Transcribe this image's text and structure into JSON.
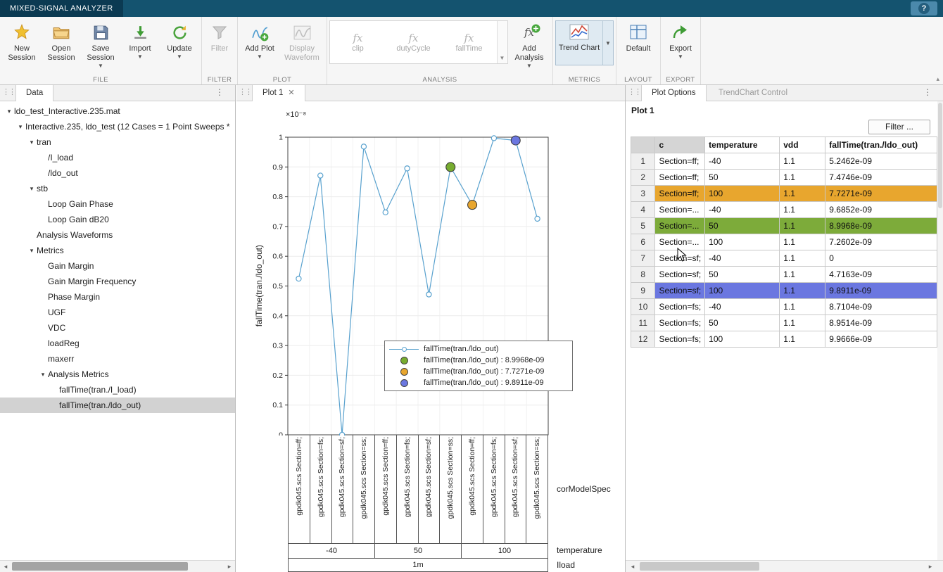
{
  "window": {
    "title": "MIXED-SIGNAL ANALYZER",
    "help": "?"
  },
  "ribbon": {
    "file": {
      "section": "FILE",
      "new": "New Session",
      "open": "Open Session",
      "save": "Save Session",
      "import": "Import",
      "update": "Update"
    },
    "filter": {
      "section": "FILTER",
      "filter": "Filter"
    },
    "plot": {
      "section": "PLOT",
      "add_plot": "Add Plot",
      "display_waveform": "Display Waveform"
    },
    "analysis": {
      "section": "ANALYSIS",
      "items": [
        "clip",
        "dutyCycle",
        "fallTime"
      ],
      "add_analysis": "Add Analysis"
    },
    "metrics": {
      "section": "METRICS",
      "trend_chart": "Trend Chart"
    },
    "layout": {
      "section": "LAYOUT",
      "default": "Default"
    },
    "export": {
      "section": "EXPORT",
      "export": "Export"
    }
  },
  "panels": {
    "data": {
      "tab": "Data"
    },
    "plot": {
      "tab": "Plot 1"
    },
    "options": {
      "tab_plot_options": "Plot Options",
      "tab_trendchart": "TrendChart Control",
      "heading": "Plot 1",
      "filter_button": "Filter ..."
    }
  },
  "tree": {
    "items": [
      {
        "label": "ldo_test_Interactive.235.mat"
      },
      {
        "label": "Interactive.235, ldo_test (12 Cases = 1 Point Sweeps *"
      },
      {
        "label": "tran"
      },
      {
        "label": "/I_load"
      },
      {
        "label": "/ldo_out"
      },
      {
        "label": "stb"
      },
      {
        "label": "Loop Gain Phase"
      },
      {
        "label": "Loop Gain dB20"
      },
      {
        "label": "Analysis Waveforms"
      },
      {
        "label": "Metrics"
      },
      {
        "label": "Gain Margin"
      },
      {
        "label": "Gain Margin Frequency"
      },
      {
        "label": "Phase Margin"
      },
      {
        "label": "UGF"
      },
      {
        "label": "VDC"
      },
      {
        "label": "loadReg"
      },
      {
        "label": "maxerr"
      },
      {
        "label": "Analysis Metrics"
      },
      {
        "label": "fallTime(tran./I_load)"
      },
      {
        "label": "fallTime(tran./ldo_out)"
      }
    ]
  },
  "table": {
    "headers": {
      "c": "c",
      "temperature": "temperature",
      "vdd": "vdd",
      "fallTime": "fallTime(tran./ldo_out)"
    },
    "rows": [
      {
        "num": "1",
        "c": "Section=ff;",
        "temperature": "-40",
        "vdd": "1.1",
        "fallTime": "5.2462e-09"
      },
      {
        "num": "2",
        "c": "Section=ff;",
        "temperature": "50",
        "vdd": "1.1",
        "fallTime": "7.4746e-09"
      },
      {
        "num": "3",
        "c": "Section=ff;",
        "temperature": "100",
        "vdd": "1.1",
        "fallTime": "7.7271e-09"
      },
      {
        "num": "4",
        "c": "Section=...",
        "temperature": "-40",
        "vdd": "1.1",
        "fallTime": "9.6852e-09"
      },
      {
        "num": "5",
        "c": "Section=...",
        "temperature": "50",
        "vdd": "1.1",
        "fallTime": "8.9968e-09"
      },
      {
        "num": "6",
        "c": "Section=...",
        "temperature": "100",
        "vdd": "1.1",
        "fallTime": "7.2602e-09"
      },
      {
        "num": "7",
        "c": "Section=sf;",
        "temperature": "-40",
        "vdd": "1.1",
        "fallTime": "0"
      },
      {
        "num": "8",
        "c": "Section=sf;",
        "temperature": "50",
        "vdd": "1.1",
        "fallTime": "4.7163e-09"
      },
      {
        "num": "9",
        "c": "Section=sf;",
        "temperature": "100",
        "vdd": "1.1",
        "fallTime": "9.8911e-09"
      },
      {
        "num": "10",
        "c": "Section=fs;",
        "temperature": "-40",
        "vdd": "1.1",
        "fallTime": "8.7104e-09"
      },
      {
        "num": "11",
        "c": "Section=fs;",
        "temperature": "50",
        "vdd": "1.1",
        "fallTime": "8.9514e-09"
      },
      {
        "num": "12",
        "c": "Section=fs;",
        "temperature": "100",
        "vdd": "1.1",
        "fallTime": "9.9666e-09"
      }
    ]
  },
  "chart_data": {
    "type": "line",
    "title": "",
    "ylabel": "fallTime(tran./ldo_out)",
    "y_exponent_label": "×10⁻⁸",
    "ylim": [
      0,
      1e-08
    ],
    "y_ticks": [
      "0",
      "0.1",
      "0.2",
      "0.3",
      "0.4",
      "0.5",
      "0.6",
      "0.7",
      "0.8",
      "0.9",
      "1"
    ],
    "line_color": "#58a1ce",
    "x_categories": [
      "gpdk045.scs Section=ff;",
      "gpdk045.scs Section=fs;",
      "gpdk045.scs Section=sf;",
      "gpdk045.scs Section=ss;",
      "gpdk045.scs Section=ff;",
      "gpdk045.scs Section=fs;",
      "gpdk045.scs Section=sf;",
      "gpdk045.scs Section=ss;",
      "gpdk045.scs Section=ff;",
      "gpdk045.scs Section=fs;",
      "gpdk045.scs Section=sf;",
      "gpdk045.scs Section=ss;"
    ],
    "values": [
      5.2462e-09,
      8.7104e-09,
      0,
      9.6852e-09,
      7.4746e-09,
      8.9514e-09,
      4.7163e-09,
      8.9968e-09,
      7.7271e-09,
      9.9666e-09,
      9.8911e-09,
      7.2602e-09
    ],
    "highlights": [
      {
        "index": 7,
        "color": "#77ac30",
        "value": "8.9968e-09"
      },
      {
        "index": 8,
        "color": "#e8a62e",
        "value": "7.7271e-09"
      },
      {
        "index": 10,
        "color": "#6b77e0",
        "value": "9.8911e-09"
      }
    ],
    "legend": [
      "fallTime(tran./ldo_out)",
      "fallTime(tran./ldo_out) :  8.9968e-09",
      "fallTime(tran./ldo_out) :  7.7271e-09",
      "fallTime(tran./ldo_out) :  9.8911e-09"
    ],
    "group_rows": {
      "temperature_groups": [
        "-40",
        "50",
        "100"
      ],
      "iload": "1m",
      "row_labels": [
        "corModelSpec",
        "temperature",
        "Iload"
      ]
    }
  },
  "colors": {
    "titlebar": "#14536f",
    "title_tab": "#0b3a52",
    "row_highlight_orange": "#e8a62e",
    "row_highlight_green": "#7dab3a",
    "row_highlight_blue": "#6b77e0",
    "line": "#58a1ce"
  }
}
